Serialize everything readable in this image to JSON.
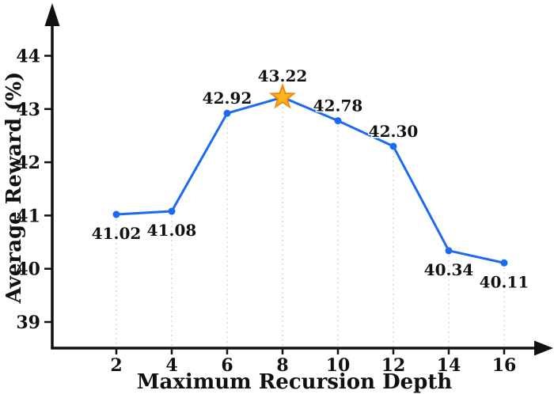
{
  "chart_data": {
    "type": "line",
    "title": "",
    "xlabel": "Maximum Recursion Depth",
    "ylabel": "Average Reward (%)",
    "x": [
      2,
      4,
      6,
      8,
      10,
      12,
      14,
      16
    ],
    "values": [
      41.02,
      41.08,
      42.92,
      43.22,
      42.78,
      42.3,
      40.34,
      40.11
    ],
    "point_labels": [
      "41.02",
      "41.08",
      "42.92",
      "43.22",
      "42.78",
      "42.30",
      "40.34",
      "40.11"
    ],
    "label_side": [
      "below",
      "below",
      "above",
      "above",
      "above",
      "above",
      "below",
      "below"
    ],
    "highlight": {
      "x": 8,
      "value": 43.22,
      "marker": "star"
    },
    "xticks": [
      "2",
      "4",
      "6",
      "8",
      "10",
      "12",
      "14",
      "16"
    ],
    "yticks": [
      "39",
      "40",
      "41",
      "42",
      "43",
      "44"
    ],
    "ylim": [
      38.5,
      45.0
    ],
    "xlim": [
      0,
      17.6
    ],
    "grid": "dotted vertical drop lines from each point to x-axis",
    "legend": "none",
    "axes_style": "open L-shape with arrowheads on top of y-axis and right of x-axis",
    "colors": {
      "line": "#1b6bf2",
      "marker": "#1b6bf2",
      "star_fill": "#ffb31f",
      "star_edge": "#ef8a0d",
      "axis": "#111111",
      "gridline": "#d9d9d9",
      "text": "#111111",
      "background": "#ffffff"
    }
  }
}
